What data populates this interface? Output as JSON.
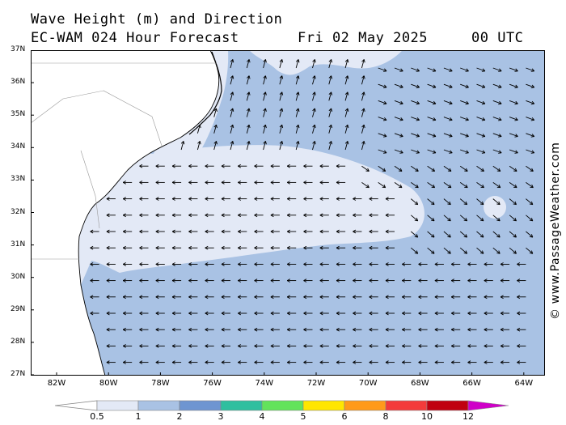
{
  "header": {
    "title_line1": "Wave Height (m) and Direction",
    "title_line2": "EC-WAM 024 Hour Forecast",
    "date": "Fri 02 May 2025",
    "time": "00 UTC"
  },
  "watermark": "© www.PassageWeather.com",
  "map": {
    "lat_labels": [
      "37N",
      "36N",
      "35N",
      "34N",
      "33N",
      "32N",
      "31N",
      "30N",
      "29N",
      "28N",
      "27N"
    ],
    "lon_labels": [
      "82W",
      "80W",
      "78W",
      "76W",
      "74W",
      "72W",
      "70W",
      "68W",
      "66W",
      "64W"
    ],
    "colors": {
      "land": "#ffffff",
      "band_0_5_1": "#e3e9f6",
      "band_1_2": "#a9c2e4",
      "coast": "#000000"
    }
  },
  "legend": {
    "labels": [
      "0.5",
      "1",
      "2",
      "3",
      "4",
      "5",
      "6",
      "8",
      "10",
      "12"
    ],
    "colors": [
      "#e3e9f6",
      "#a9c2e4",
      "#6e95d1",
      "#2fbf9f",
      "#63e35b",
      "#ffe600",
      "#ff9a1a",
      "#f33b3b",
      "#c00010",
      "#cf00c8"
    ]
  }
}
